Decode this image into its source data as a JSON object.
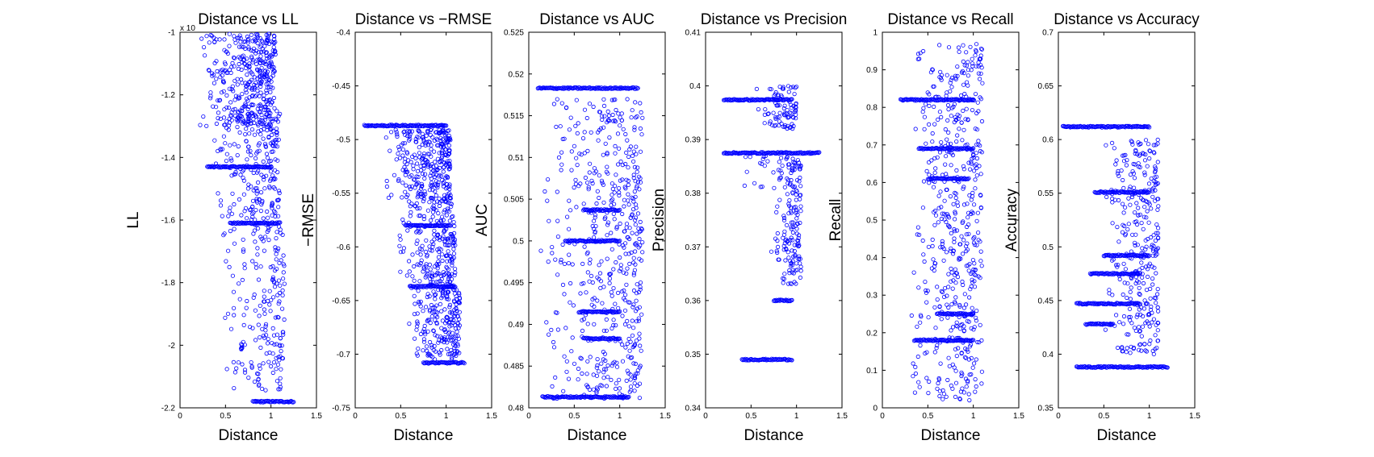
{
  "figure": {
    "background": "#ffffff",
    "marker_color": "#0000ff",
    "marker": "open-circle"
  },
  "chart_data": [
    {
      "type": "scatter",
      "title": "Distance vs LL",
      "xlabel": "Distance",
      "ylabel": "LL",
      "xlim": [
        0,
        1.5
      ],
      "ylim": [
        -2.2,
        -1.0
      ],
      "xticks": [
        "0",
        "0.5",
        "1",
        "1.5"
      ],
      "yticks": [
        "-2.2",
        "-2",
        "-1.8",
        "-1.6",
        "-1.4",
        "-1.2",
        "-1"
      ],
      "ytick_values": [
        -2.2,
        -2.0,
        -1.8,
        -1.6,
        -1.4,
        -1.2,
        -1.0
      ],
      "exponent_label": "x 10",
      "grid": false,
      "bands": [
        {
          "y": -1.0,
          "x": [
            0.2,
            1.0
          ]
        },
        {
          "y": -1.43,
          "x": [
            0.3,
            1.0
          ]
        },
        {
          "y": -1.61,
          "x": [
            0.55,
            1.1
          ]
        },
        {
          "y": -2.18,
          "x": [
            0.8,
            1.25
          ]
        }
      ],
      "clusters": [
        {
          "x": [
            0.2,
            1.05
          ],
          "y": [
            -1.3,
            -1.0
          ],
          "n": 380
        },
        {
          "x": [
            0.35,
            1.1
          ],
          "y": [
            -1.6,
            -1.25
          ],
          "n": 220
        },
        {
          "x": [
            0.45,
            1.15
          ],
          "y": [
            -2.15,
            -1.6
          ],
          "n": 200
        }
      ]
    },
    {
      "type": "scatter",
      "title": "Distance vs −RMSE",
      "xlabel": "Distance",
      "ylabel": "−RMSE",
      "xlim": [
        0,
        1.5
      ],
      "ylim": [
        -0.75,
        -0.4
      ],
      "xticks": [
        "0",
        "0.5",
        "1",
        "1.5"
      ],
      "yticks": [
        "-0.75",
        "-0.7",
        "-0.65",
        "-0.6",
        "-0.55",
        "-0.5",
        "-0.45",
        "-0.4"
      ],
      "ytick_values": [
        -0.75,
        -0.7,
        -0.65,
        -0.6,
        -0.55,
        -0.5,
        -0.45,
        -0.4
      ],
      "grid": false,
      "bands": [
        {
          "y": -0.487,
          "x": [
            0.1,
            1.0
          ]
        },
        {
          "y": -0.58,
          "x": [
            0.55,
            1.05
          ]
        },
        {
          "y": -0.637,
          "x": [
            0.6,
            1.1
          ]
        },
        {
          "y": -0.708,
          "x": [
            0.75,
            1.2
          ]
        }
      ],
      "clusters": [
        {
          "x": [
            0.3,
            1.05
          ],
          "y": [
            -0.56,
            -0.49
          ],
          "n": 320
        },
        {
          "x": [
            0.45,
            1.1
          ],
          "y": [
            -0.64,
            -0.56
          ],
          "n": 220
        },
        {
          "x": [
            0.55,
            1.15
          ],
          "y": [
            -0.705,
            -0.64
          ],
          "n": 200
        }
      ]
    },
    {
      "type": "scatter",
      "title": "Distance vs AUC",
      "xlabel": "Distance",
      "ylabel": "AUC",
      "xlim": [
        0,
        1.5
      ],
      "ylim": [
        0.48,
        0.525
      ],
      "xticks": [
        "0",
        "0.5",
        "1",
        "1.5"
      ],
      "yticks": [
        "0.48",
        "0.485",
        "0.49",
        "0.495",
        "0.5",
        "0.505",
        "0.51",
        "0.515",
        "0.52",
        "0.525"
      ],
      "ytick_values": [
        0.48,
        0.485,
        0.49,
        0.495,
        0.5,
        0.505,
        0.51,
        0.515,
        0.52,
        0.525
      ],
      "grid": false,
      "bands": [
        {
          "y": 0.5183,
          "x": [
            0.1,
            1.2
          ]
        },
        {
          "y": 0.4813,
          "x": [
            0.15,
            1.1
          ]
        },
        {
          "y": 0.5,
          "x": [
            0.4,
            1.0
          ]
        },
        {
          "y": 0.5037,
          "x": [
            0.6,
            1.0
          ]
        },
        {
          "y": 0.4915,
          "x": [
            0.55,
            1.0
          ]
        },
        {
          "y": 0.4883,
          "x": [
            0.6,
            1.0
          ]
        }
      ],
      "clusters": [
        {
          "x": [
            0.1,
            1.25
          ],
          "y": [
            0.481,
            0.517
          ],
          "n": 520
        }
      ]
    },
    {
      "type": "scatter",
      "title": "Distance vs Precision",
      "xlabel": "Distance",
      "ylabel": "Precision",
      "xlim": [
        0,
        1.5
      ],
      "ylim": [
        0.34,
        0.41
      ],
      "xticks": [
        "0",
        "0.5",
        "1",
        "1.5"
      ],
      "yticks": [
        "0.34",
        "0.35",
        "0.36",
        "0.37",
        "0.38",
        "0.39",
        "0.4",
        "0.41"
      ],
      "ytick_values": [
        0.34,
        0.35,
        0.36,
        0.37,
        0.38,
        0.39,
        0.4,
        0.41
      ],
      "grid": false,
      "bands": [
        {
          "y": 0.3875,
          "x": [
            0.2,
            1.25
          ]
        },
        {
          "y": 0.3974,
          "x": [
            0.2,
            0.95
          ]
        },
        {
          "y": 0.349,
          "x": [
            0.4,
            0.95
          ]
        },
        {
          "y": 0.36,
          "x": [
            0.75,
            0.95
          ]
        }
      ],
      "clusters": [
        {
          "x": [
            0.55,
            1.0
          ],
          "y": [
            0.392,
            0.4
          ],
          "n": 90
        },
        {
          "x": [
            0.7,
            1.05
          ],
          "y": [
            0.363,
            0.387
          ],
          "n": 170
        },
        {
          "x": [
            0.35,
            0.7
          ],
          "y": [
            0.381,
            0.387
          ],
          "n": 14
        }
      ]
    },
    {
      "type": "scatter",
      "title": "Distance vs Recall",
      "xlabel": "Distance",
      "ylabel": "Recall",
      "xlim": [
        0,
        1.5
      ],
      "ylim": [
        0,
        1
      ],
      "xticks": [
        "0",
        "0.5",
        "1",
        "1.5"
      ],
      "yticks": [
        "0",
        "0.1",
        "0.2",
        "0.3",
        "0.4",
        "0.5",
        "0.6",
        "0.7",
        "0.8",
        "0.9",
        "1"
      ],
      "ytick_values": [
        0,
        0.1,
        0.2,
        0.3,
        0.4,
        0.5,
        0.6,
        0.7,
        0.8,
        0.9,
        1
      ],
      "grid": false,
      "bands": [
        {
          "y": 1.0,
          "x": [
            0.2,
            1.25
          ]
        },
        {
          "y": 0.0,
          "x": [
            0.0,
            1.1
          ]
        },
        {
          "y": 0.82,
          "x": [
            0.2,
            1.0
          ]
        },
        {
          "y": 0.18,
          "x": [
            0.35,
            1.0
          ]
        },
        {
          "y": 0.69,
          "x": [
            0.4,
            1.0
          ]
        },
        {
          "y": 0.61,
          "x": [
            0.5,
            0.95
          ]
        },
        {
          "y": 0.25,
          "x": [
            0.6,
            1.0
          ]
        }
      ],
      "clusters": [
        {
          "x": [
            0.25,
            1.1
          ],
          "y": [
            0.02,
            0.97
          ],
          "n": 520
        }
      ]
    },
    {
      "type": "scatter",
      "title": "Distance vs Accuracy",
      "xlabel": "Distance",
      "ylabel": "Accuracy",
      "xlim": [
        0,
        1.5
      ],
      "ylim": [
        0.35,
        0.7
      ],
      "xticks": [
        "0",
        "0.5",
        "1",
        "1.5"
      ],
      "yticks": [
        "0.35",
        "0.4",
        "0.45",
        "0.5",
        "0.55",
        "0.6",
        "0.65",
        "0.7"
      ],
      "ytick_values": [
        0.35,
        0.4,
        0.45,
        0.5,
        0.55,
        0.6,
        0.65,
        0.7
      ],
      "grid": false,
      "bands": [
        {
          "y": 0.612,
          "x": [
            0.05,
            1.0
          ]
        },
        {
          "y": 0.388,
          "x": [
            0.2,
            1.2
          ]
        },
        {
          "y": 0.447,
          "x": [
            0.2,
            0.9
          ]
        },
        {
          "y": 0.551,
          "x": [
            0.4,
            1.0
          ]
        },
        {
          "y": 0.492,
          "x": [
            0.5,
            1.0
          ]
        },
        {
          "y": 0.475,
          "x": [
            0.35,
            0.9
          ]
        },
        {
          "y": 0.428,
          "x": [
            0.3,
            0.6
          ]
        }
      ],
      "clusters": [
        {
          "x": [
            0.5,
            1.1
          ],
          "y": [
            0.4,
            0.6
          ],
          "n": 320
        }
      ]
    }
  ]
}
